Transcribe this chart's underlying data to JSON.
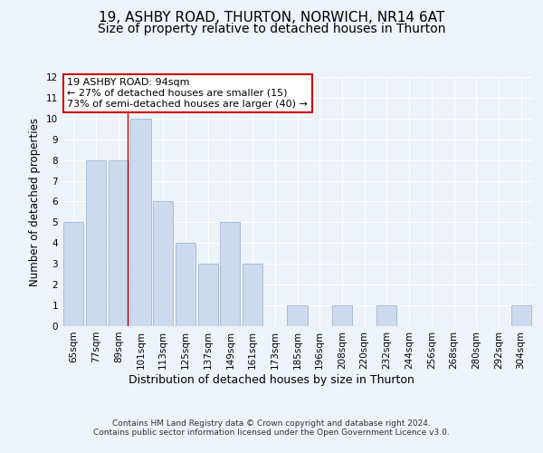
{
  "title1": "19, ASHBY ROAD, THURTON, NORWICH, NR14 6AT",
  "title2": "Size of property relative to detached houses in Thurton",
  "xlabel": "Distribution of detached houses by size in Thurton",
  "ylabel": "Number of detached properties",
  "footer": "Contains HM Land Registry data © Crown copyright and database right 2024.\nContains public sector information licensed under the Open Government Licence v3.0.",
  "categories": [
    "65sqm",
    "77sqm",
    "89sqm",
    "101sqm",
    "113sqm",
    "125sqm",
    "137sqm",
    "149sqm",
    "161sqm",
    "173sqm",
    "185sqm",
    "196sqm",
    "208sqm",
    "220sqm",
    "232sqm",
    "244sqm",
    "256sqm",
    "268sqm",
    "280sqm",
    "292sqm",
    "304sqm"
  ],
  "values": [
    5,
    8,
    8,
    10,
    6,
    4,
    3,
    5,
    3,
    0,
    1,
    0,
    1,
    0,
    1,
    0,
    0,
    0,
    0,
    0,
    1
  ],
  "bar_color": "#ccdaee",
  "bar_edge_color": "#a8bdd8",
  "annotation_title": "19 ASHBY ROAD: 94sqm",
  "annotation_line1": "← 27% of detached houses are smaller (15)",
  "annotation_line2": "73% of semi-detached houses are larger (40) →",
  "ylim": [
    0,
    12
  ],
  "yticks": [
    0,
    1,
    2,
    3,
    4,
    5,
    6,
    7,
    8,
    9,
    10,
    11,
    12
  ],
  "background_color": "#eef2f9",
  "plot_bg_color": "#eef2f9",
  "grid_color": "#ffffff",
  "title1_fontsize": 11,
  "title2_fontsize": 10,
  "xlabel_fontsize": 9,
  "ylabel_fontsize": 8.5,
  "tick_fontsize": 7.5,
  "annotation_fontsize": 8,
  "footer_fontsize": 6.5,
  "annotation_box_color": "#ffffff",
  "annotation_box_edge": "#cc0000",
  "red_line_color": "#cc0000"
}
